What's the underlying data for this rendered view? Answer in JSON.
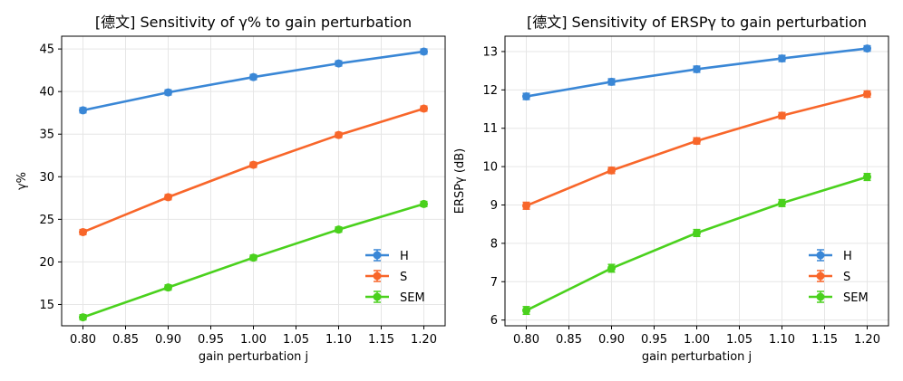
{
  "chart_data": [
    {
      "type": "line",
      "title": "[德文] Sensitivity of γ% to gain perturbation",
      "xlabel": "gain perturbation j",
      "ylabel": "γ%",
      "xlim": [
        0.775,
        1.225
      ],
      "ylim": [
        12.5,
        46.5
      ],
      "xticks": [
        "0.80",
        "0.85",
        "0.90",
        "0.95",
        "1.00",
        "1.05",
        "1.10",
        "1.15",
        "1.20"
      ],
      "yticks": [
        "15",
        "20",
        "25",
        "30",
        "35",
        "40",
        "45"
      ],
      "grid": true,
      "legend_position": "lower-right",
      "x": [
        0.8,
        0.9,
        1.0,
        1.1,
        1.2
      ],
      "series": [
        {
          "name": "H",
          "color": "#3a87d6",
          "values": [
            37.8,
            39.9,
            41.7,
            43.3,
            44.7
          ],
          "error": [
            0.3,
            0.3,
            0.3,
            0.3,
            0.3
          ]
        },
        {
          "name": "S",
          "color": "#f8662a",
          "values": [
            23.5,
            27.6,
            31.4,
            34.9,
            38.0
          ],
          "error": [
            0.3,
            0.3,
            0.3,
            0.3,
            0.3
          ]
        },
        {
          "name": "SEM",
          "color": "#4ad11d",
          "values": [
            13.5,
            17.0,
            20.5,
            23.8,
            26.8
          ],
          "error": [
            0.3,
            0.3,
            0.3,
            0.3,
            0.3
          ]
        }
      ]
    },
    {
      "type": "line",
      "title": "[德文] Sensitivity of ERSPγ to gain perturbation",
      "xlabel": "gain perturbation j",
      "ylabel": "ERSPγ (dB)",
      "xlim": [
        0.775,
        1.225
      ],
      "ylim": [
        5.85,
        13.4
      ],
      "xticks": [
        "0.80",
        "0.85",
        "0.90",
        "0.95",
        "1.00",
        "1.05",
        "1.10",
        "1.15",
        "1.20"
      ],
      "yticks": [
        "6",
        "7",
        "8",
        "9",
        "10",
        "11",
        "12",
        "13"
      ],
      "grid": true,
      "legend_position": "lower-right",
      "x": [
        0.8,
        0.9,
        1.0,
        1.1,
        1.2
      ],
      "series": [
        {
          "name": "H",
          "color": "#3a87d6",
          "values": [
            11.83,
            12.21,
            12.54,
            12.82,
            13.08
          ],
          "error": [
            0.08,
            0.08,
            0.08,
            0.08,
            0.07
          ]
        },
        {
          "name": "S",
          "color": "#f8662a",
          "values": [
            8.98,
            9.9,
            10.67,
            11.33,
            11.89
          ],
          "error": [
            0.09,
            0.08,
            0.08,
            0.08,
            0.08
          ]
        },
        {
          "name": "SEM",
          "color": "#4ad11d",
          "values": [
            6.25,
            7.35,
            8.27,
            9.05,
            9.73
          ],
          "error": [
            0.1,
            0.1,
            0.09,
            0.09,
            0.09
          ]
        }
      ]
    }
  ]
}
